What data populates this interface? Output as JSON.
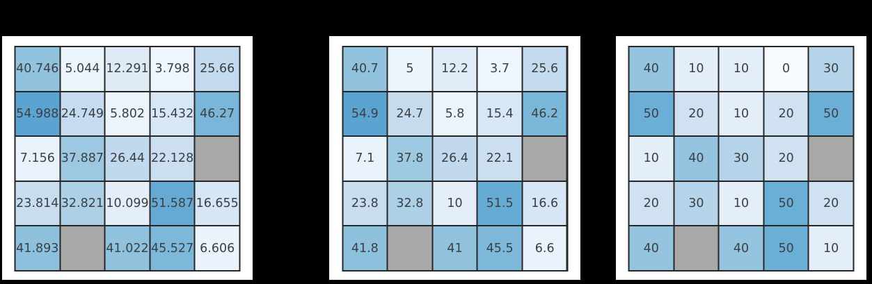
{
  "figure": {
    "background": "#000000",
    "panel_background": "#ffffff",
    "grid_line_color": "#262626",
    "cell_text_color": "#3b4045"
  },
  "chart_data": [
    {
      "type": "heatmap",
      "rows": 5,
      "cols": 5,
      "values": [
        [
          40.746,
          5.044,
          12.291,
          3.798,
          25.66
        ],
        [
          54.988,
          24.749,
          5.802,
          15.432,
          46.27
        ],
        [
          7.156,
          37.887,
          26.44,
          22.128,
          null
        ],
        [
          23.814,
          32.821,
          10.099,
          51.587,
          16.655
        ],
        [
          41.893,
          null,
          41.022,
          45.527,
          6.606
        ]
      ],
      "colormap": "Blues",
      "vmin": 0,
      "vmax": 100,
      "missing_color": "#a8a8a8",
      "grid": true,
      "legend": false
    },
    {
      "type": "heatmap",
      "rows": 5,
      "cols": 5,
      "values": [
        [
          40.7,
          5,
          12.2,
          3.7,
          25.6
        ],
        [
          54.9,
          24.7,
          5.8,
          15.4,
          46.2
        ],
        [
          7.1,
          37.8,
          26.4,
          22.1,
          null
        ],
        [
          23.8,
          32.8,
          10,
          51.5,
          16.6
        ],
        [
          41.8,
          null,
          41,
          45.5,
          6.6
        ]
      ],
      "colormap": "Blues",
      "vmin": 0,
      "vmax": 100,
      "missing_color": "#a8a8a8",
      "grid": true,
      "legend": false
    },
    {
      "type": "heatmap",
      "rows": 5,
      "cols": 5,
      "values": [
        [
          40,
          10,
          10,
          0,
          30
        ],
        [
          50,
          20,
          10,
          20,
          50
        ],
        [
          10,
          40,
          30,
          20,
          null
        ],
        [
          20,
          30,
          10,
          50,
          20
        ],
        [
          40,
          null,
          40,
          50,
          10
        ]
      ],
      "colormap": "Blues",
      "vmin": 0,
      "vmax": 100,
      "missing_color": "#a8a8a8",
      "grid": true,
      "legend": false
    }
  ]
}
